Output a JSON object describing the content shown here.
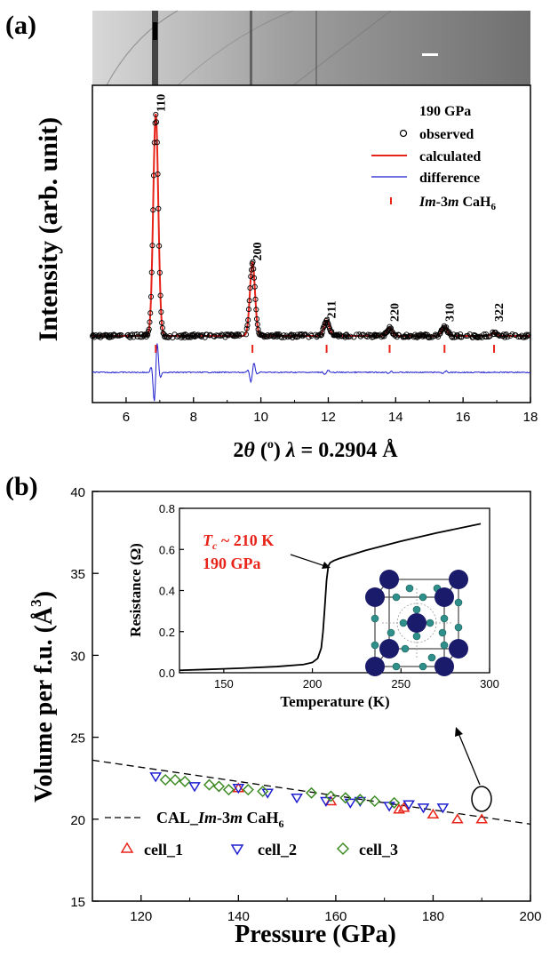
{
  "figure": {
    "panel_a_label": "(a)",
    "panel_b_label": "(b)"
  },
  "colors": {
    "observed": "#000000",
    "calculated": "#e8241a",
    "difference": "#1f1fcf",
    "marker": "#e8241a",
    "cell_1": "#e8241a",
    "cell_2": "#1f1fcf",
    "cell_3": "#3c8a22",
    "tc_text": "#e8241a"
  },
  "chart_data": [
    {
      "panel": "a",
      "type": "line",
      "xlabel_part1": "2",
      "xlabel_theta": "θ",
      "xlabel_part2": " (",
      "xlabel_part3": "o",
      "xlabel_part4": ") ",
      "xlabel_lambda": "λ",
      "xlabel_part5": " = 0.2904 Å",
      "ylabel": "Intensity (arb. unit)",
      "xlim": [
        5,
        18
      ],
      "xticks": [
        6,
        8,
        10,
        12,
        14,
        16,
        18
      ],
      "legend": {
        "pressure": "190 GPa",
        "observed": "observed",
        "calculated": "calculated",
        "difference": "difference",
        "phase_italic": "Im",
        "phase_rest": "-3",
        "phase_italic2": "m",
        "phase_compound": " CaH",
        "phase_sub": "6"
      },
      "peaks": [
        {
          "hkl": "110",
          "two_theta": 6.88,
          "height": 1.0,
          "width": 0.075
        },
        {
          "hkl": "200",
          "two_theta": 9.75,
          "height": 0.33,
          "width": 0.075
        },
        {
          "hkl": "211",
          "two_theta": 11.95,
          "height": 0.07,
          "width": 0.08
        },
        {
          "hkl": "220",
          "two_theta": 13.82,
          "height": 0.035,
          "width": 0.08
        },
        {
          "hkl": "310",
          "two_theta": 15.45,
          "height": 0.04,
          "width": 0.08
        },
        {
          "hkl": "322",
          "two_theta": 16.92,
          "height": 0.012,
          "width": 0.08
        }
      ]
    },
    {
      "panel": "b",
      "type": "scatter",
      "xlabel": "Pressure (GPa)",
      "ylabel_main": "Volume per f.u. (Å",
      "ylabel_sup": "3",
      "ylabel_end": ")",
      "xlim": [
        110,
        200
      ],
      "ylim": [
        15,
        40
      ],
      "xticks": [
        120,
        140,
        160,
        180,
        200
      ],
      "yticks": [
        15,
        20,
        25,
        30,
        35,
        40
      ],
      "fit_label": {
        "prefix": "CAL_",
        "italic1": "Im",
        "mid": "-3",
        "italic2": "m",
        "compound": " CaH",
        "sub": "6"
      },
      "fit_line": {
        "x": [
          110,
          200
        ],
        "y": [
          23.6,
          19.7
        ]
      },
      "series": [
        {
          "name": "cell_1",
          "marker": "triangle-up",
          "x": [
            140,
            159,
            173,
            174,
            180,
            185,
            190
          ],
          "y": [
            21.9,
            21.1,
            20.6,
            20.7,
            20.3,
            20.0,
            20.0
          ]
        },
        {
          "name": "cell_2",
          "marker": "triangle-down",
          "x": [
            123,
            131,
            140,
            146,
            152,
            158,
            163,
            165,
            171,
            175,
            178,
            182
          ],
          "y": [
            22.6,
            22.0,
            21.9,
            21.6,
            21.3,
            21.1,
            21.0,
            21.1,
            20.8,
            20.9,
            20.7,
            20.7
          ]
        },
        {
          "name": "cell_3",
          "marker": "diamond",
          "x": [
            125,
            127,
            129,
            134,
            136,
            138,
            142,
            145,
            155,
            159,
            162,
            165,
            168,
            172
          ],
          "y": [
            22.4,
            22.4,
            22.3,
            22.1,
            22.0,
            21.8,
            21.8,
            21.7,
            21.6,
            21.4,
            21.3,
            21.2,
            21.1,
            21.0
          ]
        }
      ],
      "inset": {
        "type": "line",
        "xlabel": "Temperature (K)",
        "ylabel": "Resistance (Ω)",
        "xlim": [
          125,
          300
        ],
        "ylim": [
          0,
          0.8
        ],
        "xticks": [
          150,
          200,
          250,
          300
        ],
        "yticks": [
          0.0,
          0.2,
          0.4,
          0.6,
          0.8
        ],
        "ytick_labels": [
          "0.0",
          "0.2",
          "0.4",
          "0.6",
          "0.8"
        ],
        "annotation_line1_italic": "T",
        "annotation_line1_sub": "c",
        "annotation_line1_rest": " ~ 210 K",
        "annotation_line2": "190 GPa",
        "curve": {
          "x": [
            125,
            140,
            160,
            180,
            195,
            200,
            203,
            205,
            206,
            207,
            208,
            209,
            210,
            212,
            215,
            230,
            250,
            270,
            295
          ],
          "y": [
            0.012,
            0.016,
            0.022,
            0.03,
            0.04,
            0.05,
            0.07,
            0.12,
            0.2,
            0.32,
            0.45,
            0.52,
            0.535,
            0.545,
            0.555,
            0.595,
            0.64,
            0.68,
            0.725
          ]
        }
      }
    }
  ]
}
